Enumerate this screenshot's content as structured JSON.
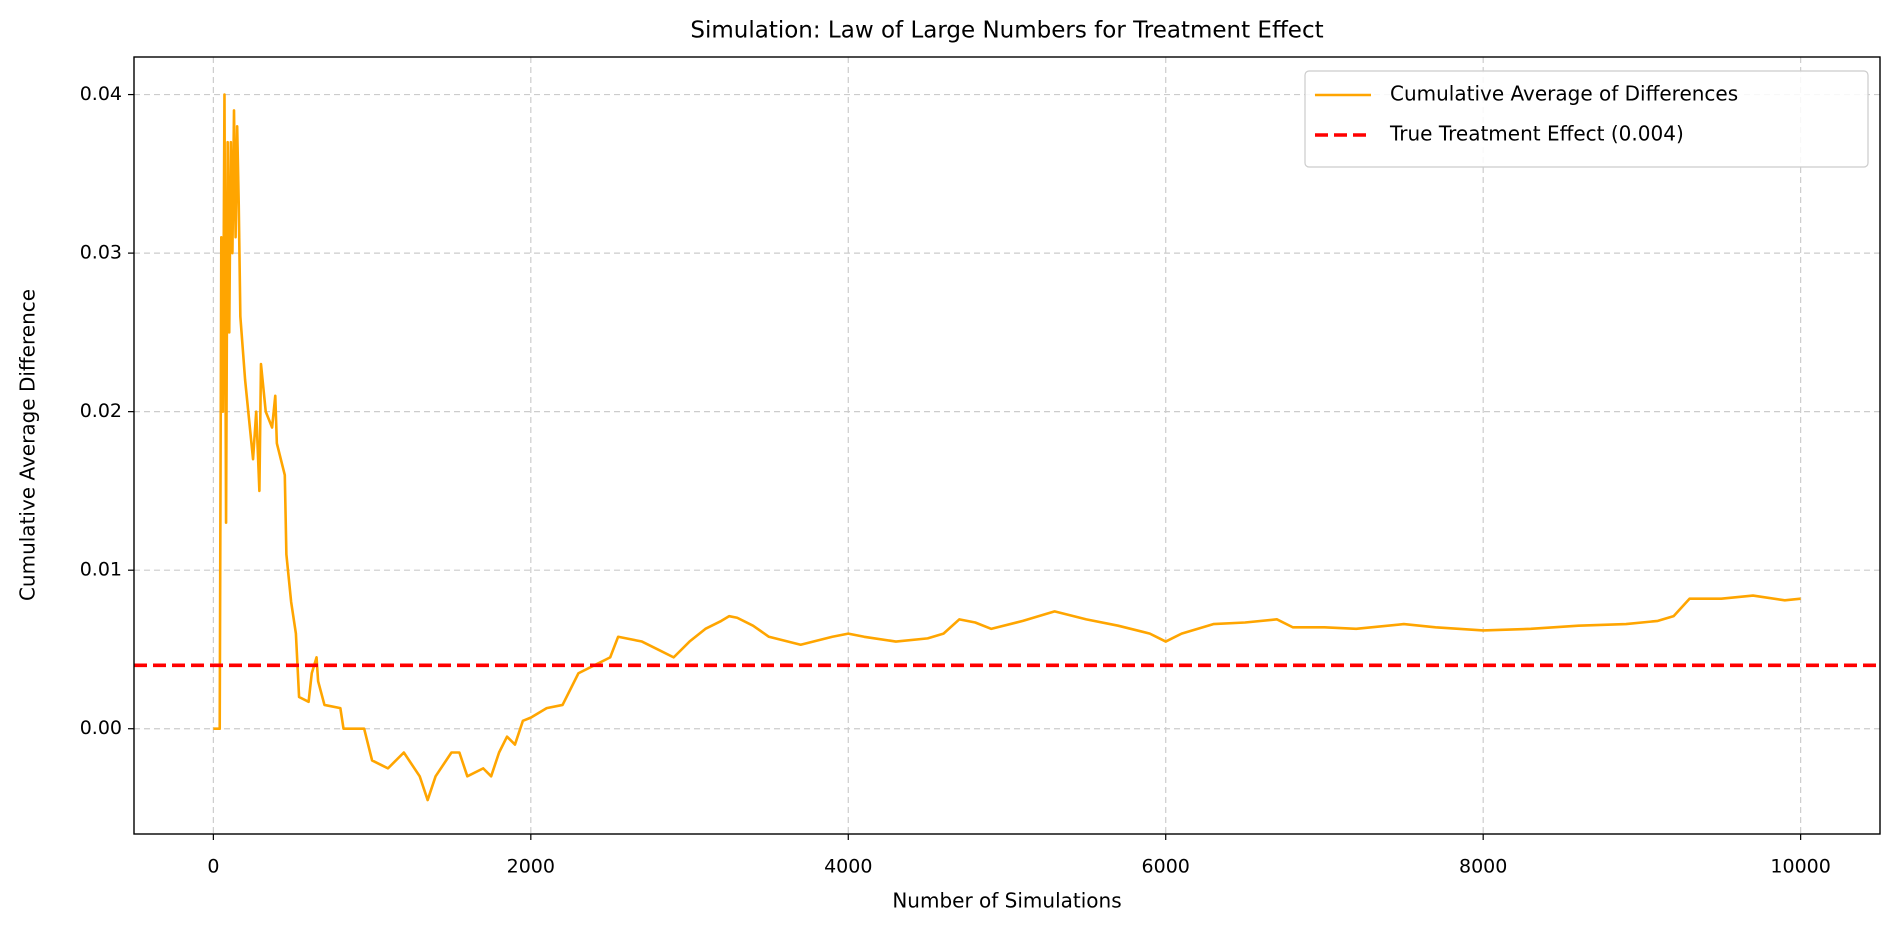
{
  "chart_data": {
    "type": "line",
    "title": "Simulation: Law of Large Numbers for Treatment Effect",
    "xlabel": "Number of Simulations",
    "ylabel": "Cumulative Average Difference",
    "xlim": [
      -500,
      10500
    ],
    "ylim": [
      -0.00664,
      0.04237
    ],
    "xticks": [
      0,
      2000,
      4000,
      6000,
      8000,
      10000
    ],
    "yticks": [
      {
        "value": 0,
        "label": "0.00"
      },
      {
        "value": 0.01,
        "label": "0.01"
      },
      {
        "value": 0.02,
        "label": "0.02"
      },
      {
        "value": 0.03,
        "label": "0.03"
      },
      {
        "value": 0.04,
        "label": "0.04"
      }
    ],
    "grid": true,
    "legend": "upper right",
    "series": [
      {
        "name": "Cumulative Average of Differences",
        "color": "#ffa500",
        "x": [
          0,
          40,
          50,
          60,
          70,
          80,
          90,
          100,
          110,
          120,
          130,
          140,
          150,
          160,
          170,
          200,
          250,
          270,
          290,
          300,
          330,
          370,
          390,
          400,
          450,
          460,
          490,
          520,
          540,
          600,
          620,
          650,
          660,
          700,
          800,
          820,
          950,
          1000,
          1100,
          1200,
          1300,
          1350,
          1400,
          1500,
          1550,
          1600,
          1700,
          1750,
          1800,
          1850,
          1900,
          1950,
          2000,
          2100,
          2200,
          2300,
          2400,
          2500,
          2550,
          2700,
          2800,
          2900,
          3000,
          3100,
          3200,
          3250,
          3300,
          3400,
          3500,
          3700,
          3900,
          4000,
          4100,
          4300,
          4500,
          4600,
          4700,
          4800,
          4900,
          5100,
          5300,
          5500,
          5700,
          5900,
          6000,
          6100,
          6300,
          6500,
          6700,
          6800,
          7000,
          7200,
          7500,
          7700,
          8000,
          8300,
          8600,
          8900,
          9100,
          9200,
          9300,
          9500,
          9700,
          9900,
          10000
        ],
        "values": [
          0,
          0,
          0.031,
          0.02,
          0.04,
          0.013,
          0.037,
          0.025,
          0.037,
          0.03,
          0.039,
          0.031,
          0.038,
          0.033,
          0.026,
          0.022,
          0.017,
          0.02,
          0.015,
          0.023,
          0.02,
          0.019,
          0.021,
          0.018,
          0.016,
          0.011,
          0.008,
          0.006,
          0.002,
          0.0017,
          0.0035,
          0.0045,
          0.003,
          0.0015,
          0.0013,
          0,
          0,
          -0.002,
          -0.0025,
          -0.0015,
          -0.003,
          -0.0045,
          -0.003,
          -0.0015,
          -0.0015,
          -0.003,
          -0.0025,
          -0.003,
          -0.0015,
          -0.0005,
          -0.001,
          0.0005,
          0.0007,
          0.0013,
          0.0015,
          0.0035,
          0.004,
          0.0045,
          0.0058,
          0.0055,
          0.005,
          0.0045,
          0.0055,
          0.0063,
          0.0068,
          0.0071,
          0.007,
          0.0065,
          0.0058,
          0.0053,
          0.0058,
          0.006,
          0.0058,
          0.0055,
          0.0057,
          0.006,
          0.0069,
          0.0067,
          0.0063,
          0.0068,
          0.0074,
          0.0069,
          0.0065,
          0.006,
          0.0055,
          0.006,
          0.0066,
          0.0067,
          0.0069,
          0.0064,
          0.0064,
          0.0063,
          0.0066,
          0.0064,
          0.0062,
          0.0063,
          0.0065,
          0.0066,
          0.0068,
          0.0071,
          0.0082,
          0.0082,
          0.0084,
          0.0081,
          0.0082
        ]
      }
    ],
    "reference_line": {
      "name": "True Treatment Effect (0.004)",
      "y": 0.004,
      "color": "#ff0000"
    }
  }
}
